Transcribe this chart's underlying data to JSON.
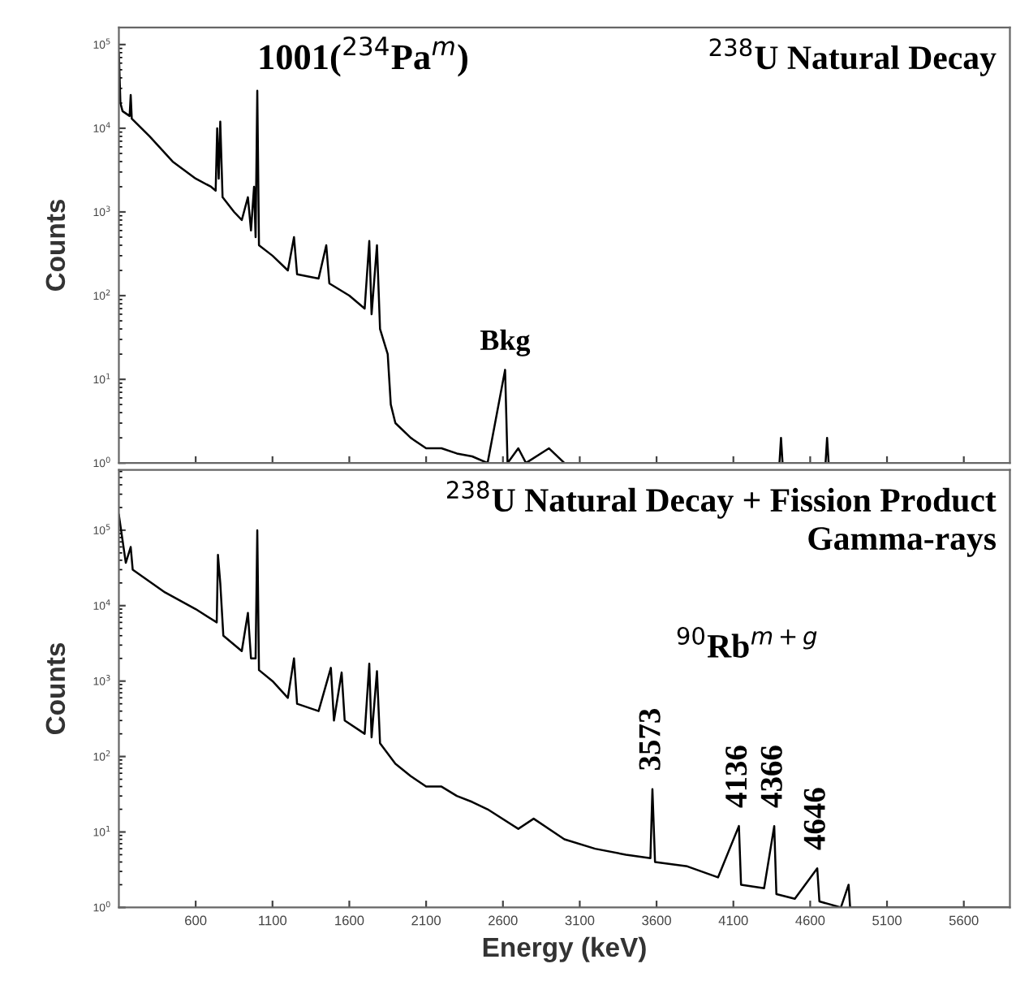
{
  "chart_data": [
    {
      "type": "line",
      "title": "$^{238}$U Natural Decay",
      "ylabel": "Counts",
      "log": "y",
      "xlim": [
        100,
        5900
      ],
      "xticks": [
        600,
        1100,
        1600,
        2100,
        2600,
        3100,
        3600,
        4100,
        4600,
        5100,
        5600
      ],
      "ylim": [
        1,
        160000
      ],
      "yticks": [
        {
          "value": 1,
          "label": "10$^{0}$"
        },
        {
          "value": 10,
          "label": "10$^{1}$"
        },
        {
          "value": 100,
          "label": "10$^{2}$"
        },
        {
          "value": 1000,
          "label": "10$^{3}$"
        },
        {
          "value": 10000,
          "label": "10$^{4}$"
        },
        {
          "value": 100000,
          "label": "10$^{5}$"
        }
      ],
      "tick_labels": "y",
      "series": [
        {
          "color": "#000000",
          "x": [
            100,
            110,
            124,
            170,
            177,
            184,
            300,
            450,
            600,
            700,
            730,
            740,
            750,
            760,
            775,
            850,
            900,
            940,
            960,
            980,
            990,
            1001,
            1012,
            1100,
            1200,
            1240,
            1260,
            1400,
            1450,
            1470,
            1600,
            1700,
            1730,
            1745,
            1780,
            1800,
            1850,
            1870,
            1900,
            2000,
            2100,
            2200,
            2300,
            2400,
            2500,
            2614,
            2630,
            2700,
            2750,
            2900,
            3000,
            3200,
            3500,
            4400,
            4410,
            4420,
            4700,
            4710,
            4720,
            5900
          ],
          "values": [
            80000,
            20000,
            16000,
            14000,
            25000,
            13000,
            8000,
            4000,
            2500,
            2000,
            1800,
            10000,
            2500,
            12000,
            1500,
            1000,
            800,
            1500,
            600,
            2000,
            500,
            28000,
            400,
            300,
            200,
            500,
            180,
            160,
            400,
            140,
            100,
            70,
            450,
            60,
            400,
            40,
            20,
            5,
            3,
            2,
            1.5,
            1.5,
            1.3,
            1.2,
            1,
            13,
            1,
            1.5,
            1,
            1.5,
            1,
            1,
            1,
            1,
            2,
            1,
            1,
            2,
            1,
            1
          ]
        }
      ],
      "annotations": [
        {
          "text": "1001($^{234}$Pa$^{m}$)",
          "x": 1001,
          "y": 28000
        },
        {
          "text": "Bkg",
          "x": 2614,
          "y": 13
        }
      ]
    },
    {
      "type": "line",
      "title": "$^{238}$U Natural Decay + Fission Product\nGamma-rays",
      "xlabel": "Energy (keV)",
      "ylabel": "Counts",
      "log": "y",
      "xlim": [
        100,
        5900
      ],
      "xticks": [
        600,
        1100,
        1600,
        2100,
        2600,
        3100,
        3600,
        4100,
        4600,
        5100,
        5600
      ],
      "ylim": [
        1,
        630000
      ],
      "yticks": [
        {
          "value": 1,
          "label": "10$^{0}$"
        },
        {
          "value": 10,
          "label": "10$^{1}$"
        },
        {
          "value": 100,
          "label": "10$^{2}$"
        },
        {
          "value": 1000,
          "label": "10$^{3}$"
        },
        {
          "value": 10000,
          "label": "10$^{4}$"
        },
        {
          "value": 100000,
          "label": "10$^{5}$"
        }
      ],
      "series": [
        {
          "color": "#000000",
          "x": [
            100,
            145,
            177,
            190,
            400,
            600,
            737,
            745,
            760,
            780,
            900,
            940,
            960,
            990,
            1001,
            1012,
            1100,
            1200,
            1240,
            1260,
            1400,
            1480,
            1500,
            1550,
            1570,
            1700,
            1730,
            1745,
            1780,
            1800,
            1900,
            2000,
            2100,
            2200,
            2300,
            2400,
            2500,
            2700,
            2800,
            3000,
            3200,
            3400,
            3560,
            3573,
            3590,
            3800,
            4000,
            4136,
            4150,
            4300,
            4366,
            4380,
            4500,
            4646,
            4660,
            4800,
            4850,
            4860,
            5900
          ],
          "values": [
            160000,
            37000,
            60000,
            30000,
            15000,
            9000,
            6000,
            47000,
            20000,
            4000,
            2500,
            8000,
            2000,
            2000,
            100000,
            1400,
            1000,
            600,
            2000,
            500,
            400,
            1500,
            300,
            1300,
            300,
            200,
            1700,
            180,
            1350,
            150,
            80,
            55,
            40,
            40,
            30,
            25,
            20,
            11,
            15,
            8,
            6,
            5,
            4.5,
            37,
            4,
            3.5,
            2.5,
            12,
            2,
            1.8,
            12,
            1.5,
            1.3,
            3.3,
            1.2,
            1,
            2,
            1,
            1
          ]
        }
      ],
      "annotations": [
        "$^{90}$Rb$^{m+g}$",
        {
          "text": "3573",
          "x": 3573,
          "y": 37
        },
        {
          "text": "4136",
          "x": 4136,
          "y": 12
        },
        {
          "text": "4366",
          "x": 4366,
          "y": 12
        },
        {
          "text": "4646",
          "x": 4646,
          "y": 3.3
        }
      ]
    }
  ]
}
